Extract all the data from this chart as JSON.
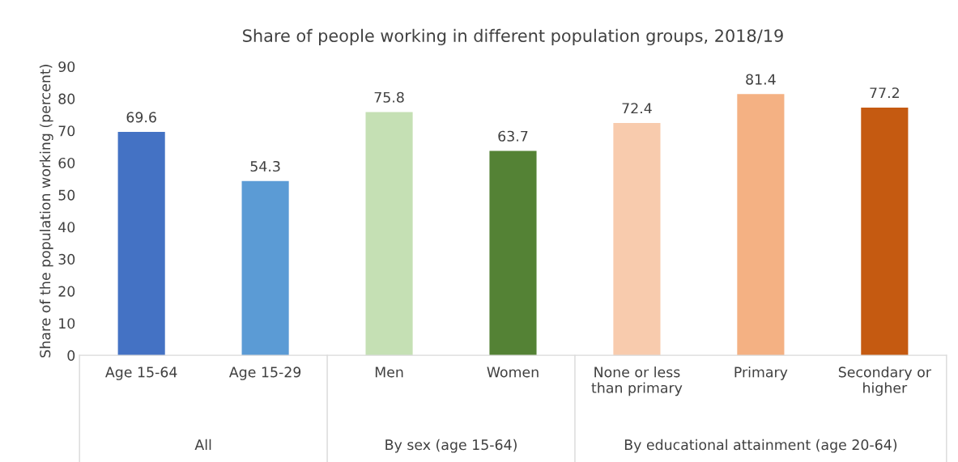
{
  "chart_data": {
    "type": "bar",
    "title": "Share of people working in different population groups, 2018/19",
    "ylabel": "Share of the population working (percent)",
    "categories": [
      "Age 15-64",
      "Age 15-29",
      "Men",
      "Women",
      "None or less\nthan primary",
      "Primary",
      "Secondary or\nhigher"
    ],
    "values": [
      69.6,
      54.3,
      75.8,
      63.7,
      72.4,
      81.4,
      77.2
    ],
    "colors": [
      "#4472c4",
      "#5b9bd5",
      "#c5e0b4",
      "#548235",
      "#f8cbad",
      "#f4b183",
      "#c55a11"
    ],
    "ylim": [
      0,
      90
    ],
    "yticks": [
      0,
      10,
      20,
      30,
      40,
      50,
      60,
      70,
      80,
      90
    ],
    "data_labels": true,
    "grid": false,
    "legend": false,
    "annotations": [
      "All",
      "By sex (age 15-64)",
      "By educational attainment (age 20-64)"
    ]
  }
}
